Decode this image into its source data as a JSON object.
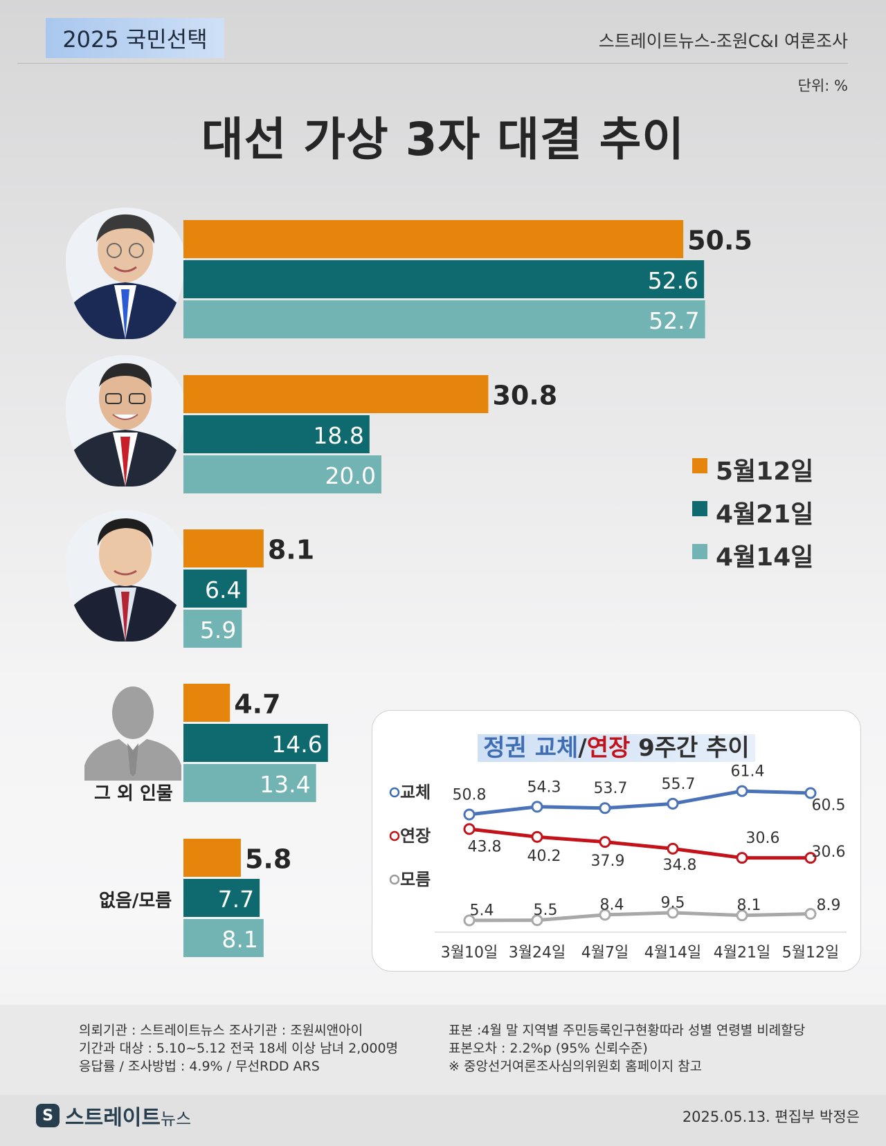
{
  "header": {
    "badge": "2025 국민선택",
    "source": "스트레이트뉴스-조원C&I 여론조사",
    "unit": "단위: %",
    "title": "대선 가상 3자 대결 추이"
  },
  "colors": {
    "may12": "#e5850b",
    "apr21": "#0e6a6f",
    "apr14": "#72b3b3",
    "change": "#4a72b8",
    "extend": "#c3121a",
    "unknown": "#a8a8a8"
  },
  "labels": {
    "others": "그 외 인물",
    "none": "없음/모름"
  },
  "chart_data": [
    {
      "type": "bar",
      "orientation": "horizontal",
      "categories": [
        "candidate-1",
        "candidate-2",
        "candidate-3",
        "그 외 인물",
        "없음/모름"
      ],
      "series": [
        {
          "name": "5월12일",
          "values": [
            50.5,
            30.8,
            8.1,
            4.7,
            5.8
          ]
        },
        {
          "name": "4월21일",
          "values": [
            52.6,
            18.8,
            6.4,
            14.6,
            7.7
          ]
        },
        {
          "name": "4월14일",
          "values": [
            52.7,
            20.0,
            5.9,
            13.4,
            8.1
          ]
        }
      ],
      "legend": "right"
    },
    {
      "type": "line",
      "title_parts": [
        "정권 교체",
        "/",
        "연장",
        " 9주간 추이"
      ],
      "categories": [
        "3월10일",
        "3월24일",
        "4월7일",
        "4월14일",
        "4월21일",
        "5월12일"
      ],
      "series": [
        {
          "name": "교체",
          "values": [
            50.8,
            54.3,
            53.7,
            55.7,
            61.4,
            60.5
          ]
        },
        {
          "name": "연장",
          "values": [
            43.8,
            40.2,
            37.9,
            34.8,
            30.6,
            30.6
          ]
        },
        {
          "name": "모름",
          "values": [
            5.4,
            5.5,
            8.4,
            9.5,
            8.1,
            8.9
          ]
        }
      ]
    }
  ],
  "footer": {
    "left": [
      "의뢰기관 : 스트레이트뉴스  조사기관 : 조원씨앤아이",
      "기간과 대상 : 5.10~5.12 전국 18세 이상 남녀 2,000명",
      "응답률 / 조사방법 : 4.9% / 무선RDD ARS"
    ],
    "right": [
      "표본 :4월 말 지역별 주민등록인구현황따라 성별 연령별 비례할당",
      "표본오차 : 2.2%p (95% 신뢰수준)",
      "※ 중앙선거여론조사심의위원회 홈페이지 참고"
    ],
    "logo_mark": "S",
    "logo_text": "스트레이트",
    "logo_sub": "뉴스",
    "byline": "2025.05.13. 편집부 박정은"
  }
}
